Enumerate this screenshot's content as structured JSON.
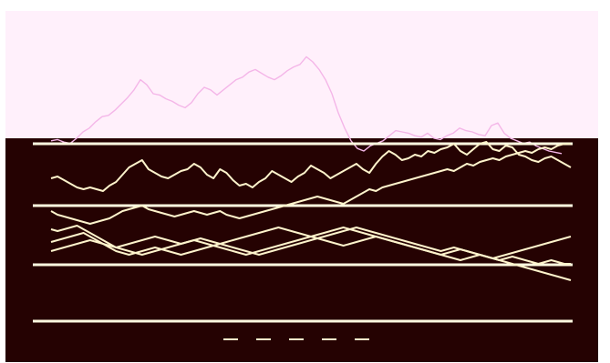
{
  "title": "",
  "subtitle": "",
  "colors": {
    "top_bg": "#fff0fb",
    "top_line": "#f4b6e8",
    "bottom_bg": "#250202",
    "bottom_line": "#fff4cc",
    "band": "#fffbe0",
    "text": "#fff4cc"
  },
  "chart_data": [
    {
      "type": "line",
      "title": "",
      "xlabel": "",
      "ylabel": "",
      "grid": false,
      "legend": "none",
      "ylim": [
        0,
        100
      ],
      "x": [
        0,
        1,
        2,
        3,
        4,
        5,
        6,
        7,
        8,
        9,
        10,
        11,
        12,
        13,
        14,
        15,
        16,
        17,
        18,
        19,
        20,
        21,
        22,
        23,
        24,
        25,
        26,
        27,
        28,
        29,
        30,
        31,
        32,
        33,
        34,
        35,
        36,
        37,
        38,
        39,
        40,
        41,
        42,
        43,
        44,
        45,
        46,
        47,
        48,
        49,
        50,
        51,
        52,
        53,
        54,
        55,
        56,
        57,
        58,
        59,
        60,
        61,
        62,
        63,
        64,
        65,
        66,
        67,
        68,
        69,
        70,
        71,
        72,
        73,
        74,
        75,
        76,
        77,
        78,
        79,
        80
      ],
      "series": [
        {
          "name": "",
          "values": [
            18,
            19,
            17,
            16,
            20,
            25,
            28,
            33,
            37,
            38,
            42,
            47,
            52,
            58,
            66,
            62,
            55,
            54,
            51,
            49,
            46,
            44,
            48,
            55,
            60,
            58,
            54,
            58,
            62,
            66,
            68,
            72,
            74,
            71,
            68,
            66,
            69,
            73,
            76,
            78,
            84,
            80,
            74,
            66,
            55,
            40,
            28,
            18,
            12,
            10,
            14,
            16,
            18,
            22,
            26,
            25,
            24,
            22,
            21,
            24,
            20,
            19,
            22,
            24,
            28,
            26,
            25,
            23,
            22,
            30,
            32,
            24,
            20,
            18,
            16,
            17,
            14,
            12,
            10,
            9,
            8
          ]
        }
      ]
    },
    {
      "type": "line",
      "title": "",
      "xlabel": "",
      "ylabel": "",
      "grid": false,
      "legend": "bottom",
      "ylim": [
        0,
        100
      ],
      "x": [
        0,
        1,
        2,
        3,
        4,
        5,
        6,
        7,
        8,
        9,
        10,
        11,
        12,
        13,
        14,
        15,
        16,
        17,
        18,
        19,
        20,
        21,
        22,
        23,
        24,
        25,
        26,
        27,
        28,
        29,
        30,
        31,
        32,
        33,
        34,
        35,
        36,
        37,
        38,
        39,
        40,
        41,
        42,
        43,
        44,
        45,
        46,
        47,
        48,
        49,
        50,
        51,
        52,
        53,
        54,
        55,
        56,
        57,
        58,
        59,
        60,
        61,
        62,
        63,
        64,
        65,
        66,
        67,
        68,
        69,
        70,
        71,
        72,
        73,
        74,
        75,
        76,
        77,
        78,
        79,
        80
      ],
      "series": [
        {
          "name": "",
          "values": [
            80,
            81,
            79,
            77,
            75,
            74,
            75,
            74,
            73,
            76,
            78,
            82,
            86,
            88,
            90,
            85,
            83,
            81,
            80,
            82,
            84,
            85,
            88,
            86,
            82,
            80,
            85,
            83,
            79,
            76,
            77,
            75,
            78,
            80,
            84,
            82,
            80,
            78,
            81,
            83,
            87,
            85,
            83,
            80,
            82,
            84,
            86,
            88,
            85,
            83,
            88,
            92,
            95,
            93,
            90,
            91,
            93,
            92,
            95,
            94,
            96,
            97,
            99,
            95,
            93,
            96,
            99,
            100,
            96,
            95,
            98,
            97,
            93,
            92,
            90,
            89,
            91,
            92,
            90,
            88,
            86
          ]
        },
        {
          "name": "",
          "values": [
            62,
            60,
            59,
            58,
            57,
            56,
            55,
            56,
            57,
            58,
            60,
            62,
            63,
            64,
            65,
            63,
            62,
            61,
            60,
            59,
            60,
            61,
            62,
            61,
            60,
            61,
            62,
            60,
            59,
            58,
            59,
            60,
            61,
            62,
            63,
            64,
            65,
            66,
            67,
            68,
            69,
            70,
            69,
            68,
            67,
            66,
            68,
            70,
            72,
            74,
            73,
            75,
            76,
            77,
            78,
            79,
            80,
            81,
            82,
            83,
            84,
            85,
            84,
            86,
            88,
            87,
            89,
            90,
            91,
            90,
            92,
            93,
            94,
            95,
            94,
            96,
            97,
            96,
            98,
            99,
            99
          ]
        },
        {
          "name": "",
          "values": [
            45,
            46,
            47,
            48,
            49,
            50,
            48,
            46,
            44,
            42,
            40,
            39,
            38,
            39,
            40,
            41,
            42,
            41,
            40,
            39,
            38,
            39,
            40,
            41,
            42,
            43,
            44,
            45,
            46,
            47,
            48,
            49,
            50,
            51,
            52,
            53,
            52,
            51,
            50,
            49,
            48,
            47,
            46,
            45,
            44,
            43,
            44,
            45,
            46,
            47,
            48,
            47,
            46,
            45,
            44,
            43,
            42,
            41,
            40,
            39,
            38,
            39,
            40,
            41,
            40,
            39,
            38,
            37,
            36,
            35,
            36,
            37,
            36,
            35,
            34,
            33,
            34,
            35,
            34,
            33,
            33
          ]
        },
        {
          "name": "",
          "values": [
            52,
            51,
            52,
            53,
            54,
            52,
            50,
            48,
            46,
            44,
            42,
            43,
            44,
            45,
            46,
            47,
            48,
            47,
            46,
            45,
            44,
            45,
            46,
            47,
            46,
            45,
            44,
            43,
            42,
            41,
            40,
            39,
            38,
            39,
            40,
            41,
            42,
            43,
            44,
            45,
            46,
            47,
            48,
            49,
            50,
            51,
            52,
            53,
            52,
            51,
            50,
            49,
            48,
            47,
            46,
            45,
            44,
            43,
            42,
            41,
            40,
            41,
            42,
            41,
            40,
            39,
            38,
            37,
            36,
            37,
            38,
            39,
            40,
            41,
            42,
            43,
            44,
            45,
            46,
            47,
            48
          ]
        },
        {
          "name": "",
          "values": [
            40,
            41,
            42,
            43,
            44,
            45,
            46,
            45,
            44,
            43,
            42,
            41,
            40,
            39,
            38,
            39,
            40,
            41,
            42,
            43,
            44,
            45,
            46,
            45,
            44,
            43,
            42,
            41,
            40,
            39,
            38,
            39,
            40,
            41,
            42,
            43,
            44,
            45,
            46,
            47,
            48,
            49,
            50,
            51,
            52,
            53,
            52,
            51,
            50,
            49,
            48,
            47,
            46,
            45,
            44,
            43,
            42,
            41,
            40,
            39,
            38,
            37,
            36,
            35,
            36,
            37,
            38,
            37,
            36,
            35,
            34,
            33,
            32,
            31,
            30,
            29,
            28,
            27,
            26,
            25,
            24
          ]
        }
      ]
    }
  ]
}
